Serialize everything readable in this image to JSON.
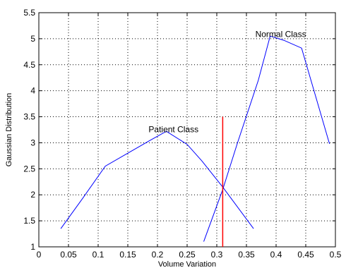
{
  "chart_data": {
    "type": "line",
    "title": "",
    "xlabel": "Volume Variation",
    "ylabel": "Gaussian Distribution",
    "xlim": [
      0,
      0.5
    ],
    "ylim": [
      1,
      5.5
    ],
    "grid": true,
    "x_ticks": [
      "0",
      "0.05",
      "0.1",
      "0.15",
      "0.2",
      "0.25",
      "0.3",
      "0.35",
      "0.4",
      "0.45",
      "0.5"
    ],
    "y_ticks": [
      "1",
      "1.5",
      "2",
      "2.5",
      "3",
      "3.5",
      "4",
      "4.5",
      "5",
      "5.5"
    ],
    "series": [
      {
        "color": "#0000ff",
        "x": [
          0.037,
          0.075,
          0.112,
          0.15,
          0.188,
          0.215,
          0.25,
          0.275,
          0.31,
          0.338,
          0.362
        ],
        "y": [
          1.35,
          1.95,
          2.55,
          2.8,
          3.05,
          3.22,
          2.97,
          2.65,
          2.15,
          1.72,
          1.35
        ]
      },
      {
        "color": "#0000ff",
        "x": [
          0.278,
          0.31,
          0.335,
          0.37,
          0.39,
          0.413,
          0.443,
          0.49
        ],
        "y": [
          1.1,
          2.1,
          3.0,
          4.2,
          5.05,
          4.97,
          4.82,
          2.98
        ]
      }
    ],
    "vline": {
      "x": 0.31,
      "y0": 1,
      "y1": 3.5,
      "color": "#ff0000"
    },
    "annotations": [
      {
        "text": "Patient Class",
        "x": 0.185,
        "y": 3.2
      },
      {
        "text": "Normal Class",
        "x": 0.365,
        "y": 5.03
      }
    ]
  }
}
